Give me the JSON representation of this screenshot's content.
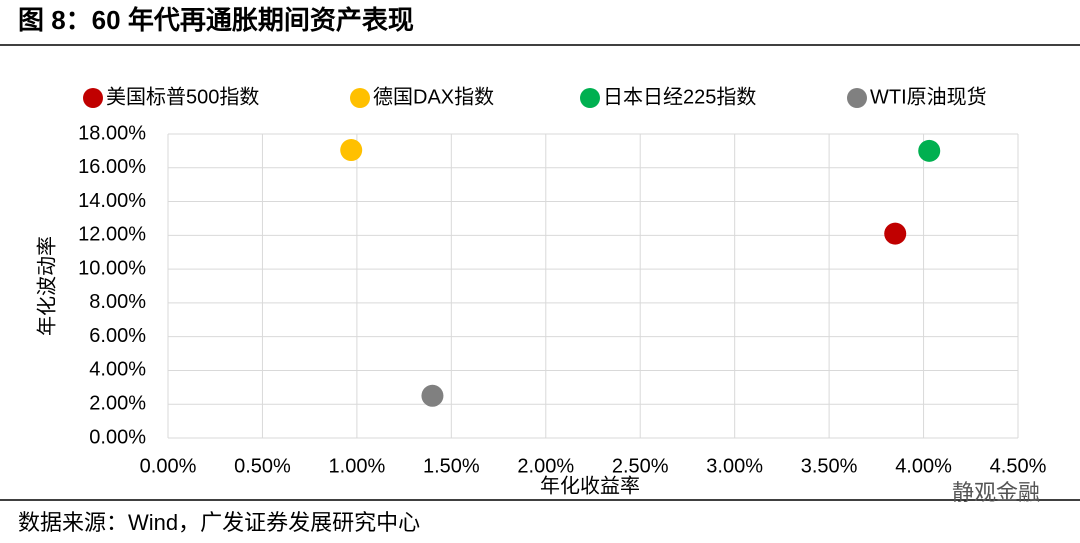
{
  "header": {
    "title": "图 8：60 年代再通胀期间资产表现"
  },
  "chart_data": {
    "type": "scatter",
    "x_label": "年化收益率",
    "y_label": "年化波动率",
    "series": [
      {
        "name": "美国标普500指数",
        "color": "#c00000",
        "x": [
          3.85
        ],
        "values": [
          12.1
        ]
      },
      {
        "name": "德国DAX指数",
        "color": "#ffc000",
        "x": [
          0.97
        ],
        "values": [
          17.05
        ]
      },
      {
        "name": "日本日经225指数",
        "color": "#00b050",
        "x": [
          4.03
        ],
        "values": [
          17.0
        ]
      },
      {
        "name": "WTI原油现货",
        "color": "#808080",
        "x": [
          1.4
        ],
        "values": [
          2.5
        ]
      }
    ],
    "xlim": [
      0,
      4.5
    ],
    "xticks": [
      {
        "value": 0,
        "label": "0.00%"
      },
      {
        "value": 0.5,
        "label": "0.50%"
      },
      {
        "value": 1,
        "label": "1.00%"
      },
      {
        "value": 1.5,
        "label": "1.50%"
      },
      {
        "value": 2,
        "label": "2.00%"
      },
      {
        "value": 2.5,
        "label": "2.50%"
      },
      {
        "value": 3,
        "label": "3.00%"
      },
      {
        "value": 3.5,
        "label": "3.50%"
      },
      {
        "value": 4,
        "label": "4.00%"
      },
      {
        "value": 4.5,
        "label": "4.50%"
      }
    ],
    "ylim": [
      0,
      18
    ],
    "yticks": [
      {
        "value": 0,
        "label": "0.00%"
      },
      {
        "value": 2,
        "label": "2.00%"
      },
      {
        "value": 4,
        "label": "4.00%"
      },
      {
        "value": 6,
        "label": "6.00%"
      },
      {
        "value": 8,
        "label": "8.00%"
      },
      {
        "value": 10,
        "label": "10.00%"
      },
      {
        "value": 12,
        "label": "12.00%"
      },
      {
        "value": 14,
        "label": "14.00%"
      },
      {
        "value": 16,
        "label": "16.00%"
      },
      {
        "value": 18,
        "label": "18.00%"
      }
    ],
    "grid": true,
    "legend": "top"
  },
  "footer": {
    "source": "数据来源：Wind，广发证券发展研究中心",
    "watermark": "静观金融"
  }
}
